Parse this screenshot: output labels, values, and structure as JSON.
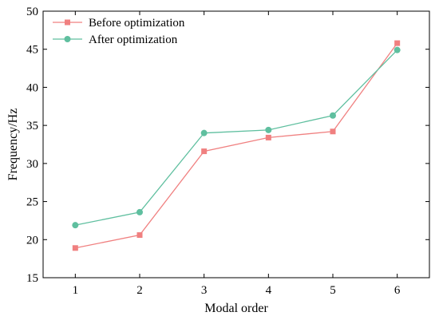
{
  "chart_data": {
    "type": "line",
    "xlabel": "Modal order",
    "ylabel": "Frequency/Hz",
    "x": [
      1,
      2,
      3,
      4,
      5,
      6
    ],
    "xlim": [
      0.5,
      6.5
    ],
    "ylim": [
      15,
      50
    ],
    "yticks": [
      15,
      20,
      25,
      30,
      35,
      40,
      45,
      50
    ],
    "grid": false,
    "legend_position": "top-left",
    "series": [
      {
        "name": "Before optimization",
        "values": [
          18.9,
          20.6,
          31.6,
          33.4,
          34.2,
          45.8
        ],
        "color": "#f08080",
        "marker": "square"
      },
      {
        "name": "After optimization",
        "values": [
          21.9,
          23.6,
          34.0,
          34.4,
          36.3,
          44.9
        ],
        "color": "#5fbf9f",
        "marker": "circle"
      }
    ]
  }
}
